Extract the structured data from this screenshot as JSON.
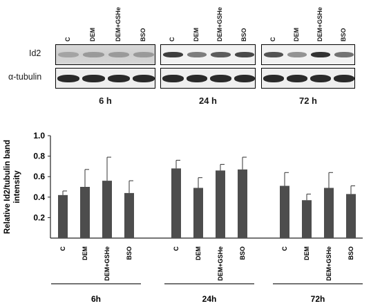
{
  "blot": {
    "row_labels": [
      "Id2",
      "α-tubulin"
    ],
    "panels": [
      {
        "time_label": "6 h",
        "lanes": [
          "C",
          "DEM",
          "DEM+GSHe",
          "BSO"
        ]
      },
      {
        "time_label": "24 h",
        "lanes": [
          "C",
          "DEM",
          "DEM+GSHe",
          "BSO"
        ]
      },
      {
        "time_label": "72 h",
        "lanes": [
          "C",
          "DEM",
          "DEM+GSHe",
          "BSO"
        ]
      }
    ]
  },
  "chart_data": {
    "type": "bar",
    "title": "",
    "ylabel": "Relative Id2/tubulin band intensity",
    "ylabel_lines": [
      "Relative Id2/tubulin band",
      "intensity"
    ],
    "ylim": [
      0,
      1.0
    ],
    "yticks": [
      "0.2",
      "0.4",
      "0.6",
      "0.8",
      "1.0"
    ],
    "grid": false,
    "bar_color": "#4d4d4d",
    "groups": [
      {
        "name": "6h",
        "categories": [
          "C",
          "DEM",
          "DEM+GSHe",
          "BSO"
        ],
        "values": [
          0.42,
          0.5,
          0.56,
          0.44
        ],
        "errors": [
          0.04,
          0.17,
          0.23,
          0.12
        ]
      },
      {
        "name": "24h",
        "categories": [
          "C",
          "DEM",
          "DEM+GSHe",
          "BSO"
        ],
        "values": [
          0.68,
          0.49,
          0.66,
          0.67
        ],
        "errors": [
          0.08,
          0.1,
          0.06,
          0.12
        ]
      },
      {
        "name": "72h",
        "categories": [
          "C",
          "DEM",
          "DEM+GSHe",
          "BSO"
        ],
        "values": [
          0.51,
          0.37,
          0.49,
          0.43
        ],
        "errors": [
          0.13,
          0.06,
          0.15,
          0.08
        ]
      }
    ]
  }
}
